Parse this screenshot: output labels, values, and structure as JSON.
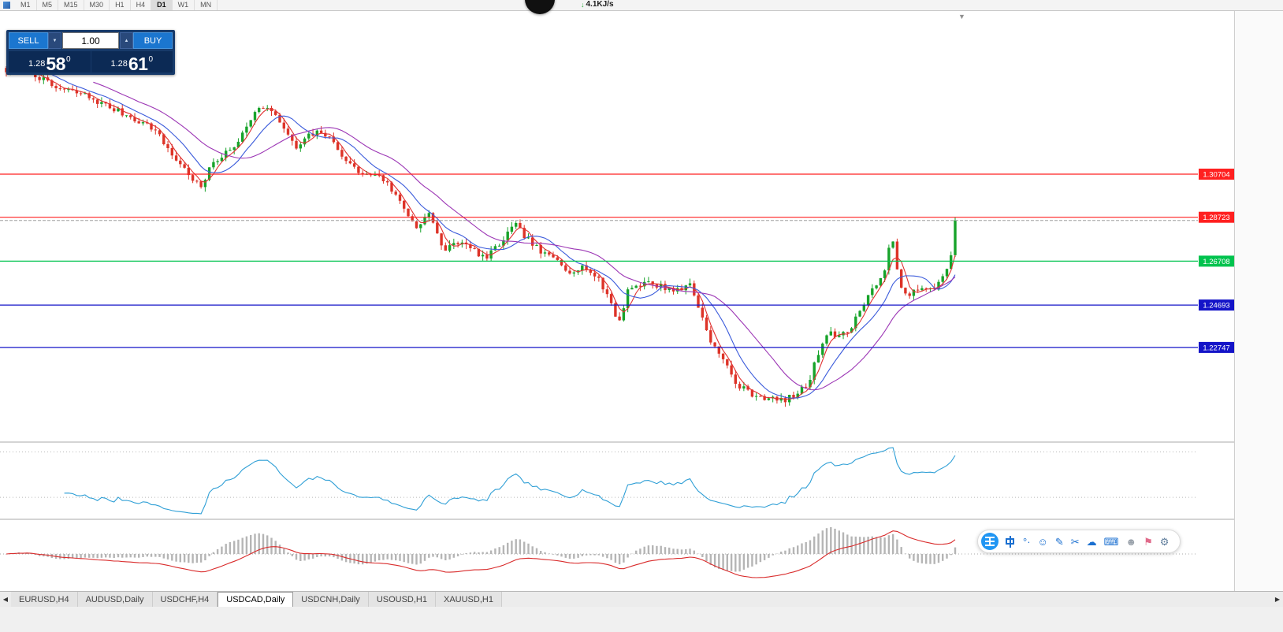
{
  "toolbar": {
    "timeframes": [
      "M1",
      "M5",
      "M15",
      "M30",
      "H1",
      "H4",
      "D1",
      "W1",
      "MN"
    ],
    "active_timeframe": "D1"
  },
  "overlay": {
    "speed_text": "4.1KJ/s"
  },
  "misc": {
    "shift_marker": "▼",
    "tab_scroll_left": "◀",
    "tab_scroll_right": "▶",
    "volume_down_glyph": "▼",
    "volume_up_glyph": "▲",
    "net_arrow": "↓"
  },
  "trade_panel": {
    "sell_label": "SELL",
    "buy_label": "BUY",
    "volume_value": "1.00",
    "bid": {
      "prefix": "1.28",
      "big": "58",
      "sup": "0"
    },
    "ask": {
      "prefix": "1.28",
      "big": "61",
      "sup": "0"
    }
  },
  "chart_data": {
    "type": "candlestick",
    "symbol": "USDCAD",
    "timeframe": "Daily",
    "bull_color": "#17a32a",
    "bear_color": "#dd3328",
    "wick_width": 1,
    "candle_count": 230,
    "noise": 0.0028,
    "last_close": 1.2858,
    "last_high": 1.2872,
    "price_scale": {
      "top": 1.3819,
      "bottom": 1.1844
    },
    "levels": [
      {
        "label": "1.30704",
        "price": 1.30704,
        "color": "#ff2020"
      },
      {
        "label": "1.28723",
        "price": 1.28723,
        "color": "#ff2020"
      },
      {
        "label": "1.26708",
        "price": 1.26708,
        "color": "#00c34e"
      },
      {
        "label": "1.24693",
        "price": 1.24693,
        "color": "#1414c8"
      },
      {
        "label": "1.22747",
        "price": 1.22747,
        "color": "#1414c8"
      }
    ],
    "mas": [
      {
        "period": 4,
        "color": "#e03131"
      },
      {
        "period": 10,
        "color": "#3b5bdb"
      },
      {
        "period": 22,
        "color": "#9c36b5"
      }
    ],
    "oscillator": {
      "name": "RSI",
      "color": "#2f9fd6",
      "level_fracs": [
        0.12,
        0.72
      ]
    },
    "histogram": {
      "name": "OsMA",
      "bar_color": "#b5b5b5",
      "line_color": "#d92b2b"
    },
    "price_path": [
      [
        0.0,
        1.3545
      ],
      [
        0.02,
        1.356
      ],
      [
        0.05,
        1.3468
      ],
      [
        0.08,
        1.3438
      ],
      [
        0.105,
        1.3385
      ],
      [
        0.13,
        1.3335
      ],
      [
        0.155,
        1.3282
      ],
      [
        0.175,
        1.3158
      ],
      [
        0.198,
        1.3042
      ],
      [
        0.205,
        1.3005
      ],
      [
        0.218,
        1.3125
      ],
      [
        0.24,
        1.3192
      ],
      [
        0.258,
        1.3335
      ],
      [
        0.272,
        1.3388
      ],
      [
        0.29,
        1.3302
      ],
      [
        0.305,
        1.3185
      ],
      [
        0.318,
        1.3242
      ],
      [
        0.332,
        1.3268
      ],
      [
        0.348,
        1.3198
      ],
      [
        0.362,
        1.3112
      ],
      [
        0.378,
        1.3062
      ],
      [
        0.392,
        1.3075
      ],
      [
        0.408,
        1.2988
      ],
      [
        0.422,
        1.2895
      ],
      [
        0.432,
        1.2825
      ],
      [
        0.445,
        1.2898
      ],
      [
        0.46,
        1.2718
      ],
      [
        0.475,
        1.2762
      ],
      [
        0.492,
        1.2722
      ],
      [
        0.506,
        1.2682
      ],
      [
        0.522,
        1.2762
      ],
      [
        0.536,
        1.2838
      ],
      [
        0.552,
        1.276
      ],
      [
        0.566,
        1.2702
      ],
      [
        0.58,
        1.2678
      ],
      [
        0.592,
        1.2625
      ],
      [
        0.61,
        1.2648
      ],
      [
        0.625,
        1.2578
      ],
      [
        0.636,
        1.2498
      ],
      [
        0.645,
        1.2378
      ],
      [
        0.656,
        1.2552
      ],
      [
        0.676,
        1.2572
      ],
      [
        0.696,
        1.2548
      ],
      [
        0.71,
        1.2535
      ],
      [
        0.721,
        1.2572
      ],
      [
        0.732,
        1.2425
      ],
      [
        0.745,
        1.2282
      ],
      [
        0.757,
        1.2208
      ],
      [
        0.77,
        1.2102
      ],
      [
        0.786,
        1.2062
      ],
      [
        0.802,
        1.2042
      ],
      [
        0.816,
        1.203
      ],
      [
        0.831,
        1.2052
      ],
      [
        0.845,
        1.2108
      ],
      [
        0.856,
        1.2252
      ],
      [
        0.866,
        1.2358
      ],
      [
        0.876,
        1.2322
      ],
      [
        0.886,
        1.2342
      ],
      [
        0.896,
        1.2412
      ],
      [
        0.906,
        1.2502
      ],
      [
        0.916,
        1.2558
      ],
      [
        0.926,
        1.2628
      ],
      [
        0.933,
        1.2788
      ],
      [
        0.941,
        1.2572
      ],
      [
        0.951,
        1.2518
      ],
      [
        0.962,
        1.2538
      ],
      [
        0.973,
        1.2538
      ],
      [
        0.981,
        1.2558
      ],
      [
        0.989,
        1.2628
      ],
      [
        0.996,
        1.269
      ],
      [
        1.0,
        1.2858
      ]
    ]
  },
  "tabs": {
    "items": [
      "EURUSD,H4",
      "AUDUSD,Daily",
      "USDCHF,H4",
      "USDCAD,Daily",
      "USDCNH,Daily",
      "USOUSD,H1",
      "XAUUSD,H1"
    ],
    "active_index": 3
  },
  "ime": {
    "icons": [
      {
        "name": "ime-logo-icon",
        "type": "wang"
      },
      {
        "name": "chinese-mode-icon",
        "type": "zhong"
      },
      {
        "name": "punctuation-mode-icon",
        "type": "glyph",
        "glyph": "°·",
        "color": "#1a6fd0"
      },
      {
        "name": "emoji-icon",
        "type": "glyph",
        "glyph": "☺",
        "color": "#1a6fd0"
      },
      {
        "name": "pen-icon",
        "type": "glyph",
        "glyph": "✎",
        "color": "#1a6fd0"
      },
      {
        "name": "scissors-icon",
        "type": "glyph",
        "glyph": "✂",
        "color": "#1a6fd0"
      },
      {
        "name": "cloud-icon",
        "type": "glyph",
        "glyph": "☁",
        "color": "#1a6fd0"
      },
      {
        "name": "keyboard-icon",
        "type": "glyph",
        "glyph": "⌨",
        "color": "#1a6fd0"
      },
      {
        "name": "user-icon",
        "type": "glyph",
        "glyph": "☻",
        "color": "#9aa2ab"
      },
      {
        "name": "gift-icon",
        "type": "glyph",
        "glyph": "⚑",
        "color": "#e06a8a"
      },
      {
        "name": "settings-gear-icon",
        "type": "glyph",
        "glyph": "⚙",
        "color": "#5f7d9c"
      }
    ]
  }
}
